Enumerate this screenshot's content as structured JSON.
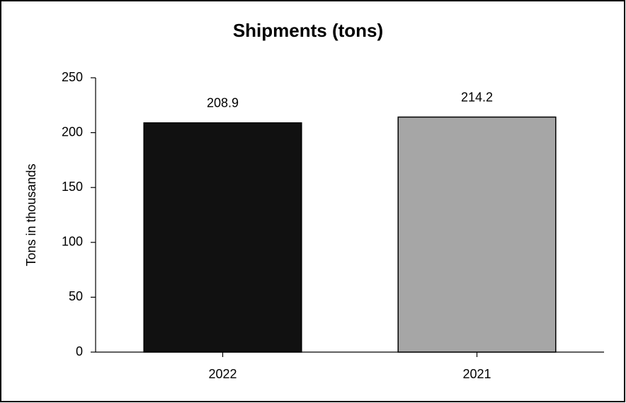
{
  "chart_data": {
    "type": "bar",
    "title": "Shipments (tons)",
    "y_label": "Tons in thousands",
    "categories": [
      "2022",
      "2021"
    ],
    "values": [
      208.9,
      214.2
    ],
    "colors": [
      "#111111",
      "#a6a6a6"
    ],
    "ylim": [
      0,
      250
    ],
    "yticks": [
      0,
      50,
      100,
      150,
      200,
      250
    ],
    "grid": false
  }
}
